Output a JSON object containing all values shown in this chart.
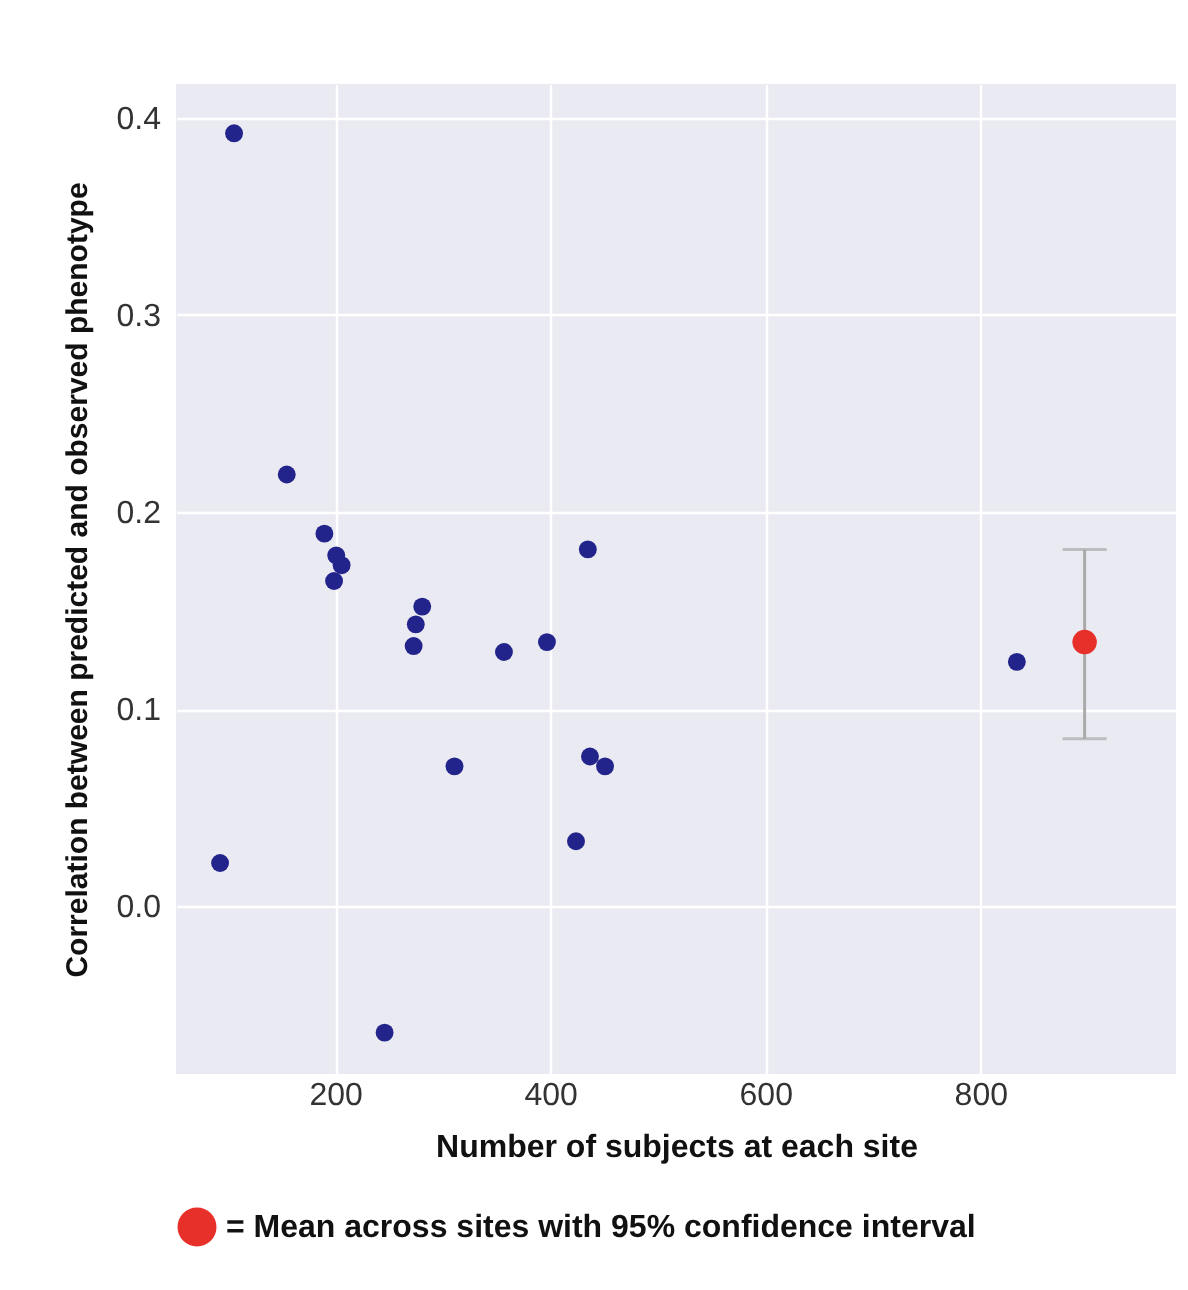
{
  "chart_data": {
    "type": "scatter",
    "xlabel": "Number of subjects at each site",
    "ylabel": "Correlation between predicted and observed phenotype",
    "xlim": [
      52,
      982
    ],
    "xticks": [
      200,
      400,
      600,
      800
    ],
    "ylim": [
      -0.085,
      0.417
    ],
    "yticks": [
      {
        "value": 0,
        "label": "0.0"
      },
      0.1,
      0.2,
      0.3,
      0.4
    ],
    "grid": true,
    "legend": "bottom",
    "marker": "circle",
    "series": [
      {
        "color": "#23238c",
        "x": [
          106,
          155,
          190,
          201,
          206,
          199,
          281,
          275,
          273,
          357,
          397,
          435,
          311,
          437,
          451,
          424,
          93,
          246,
          834
        ],
        "values": [
          0.392,
          0.219,
          0.189,
          0.178,
          0.173,
          0.165,
          0.152,
          0.143,
          0.132,
          0.129,
          0.134,
          0.181,
          0.071,
          0.076,
          0.071,
          0.033,
          0.022,
          -0.064,
          0.124
        ]
      },
      {
        "name": "= Mean across sites with 95% confidence interval",
        "color": "#e8302a",
        "x": [
          897
        ],
        "values": [
          0.134
        ],
        "errors": [
          [
            0.085,
            0.181
          ]
        ]
      }
    ]
  }
}
